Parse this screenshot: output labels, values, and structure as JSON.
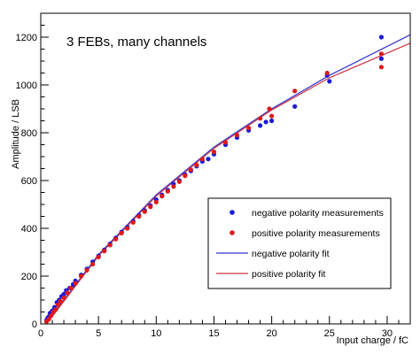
{
  "chart_data": {
    "type": "scatter",
    "annotation": "3 FEBs, many channels",
    "xlabel": "Input charge / fC",
    "ylabel": "Amplitude / LSB",
    "xlim": [
      0,
      32
    ],
    "ylim": [
      0,
      1300
    ],
    "xticks": [
      0,
      5,
      10,
      15,
      20,
      25,
      30
    ],
    "yticks": [
      0,
      200,
      400,
      600,
      800,
      1000,
      1200
    ],
    "grid": false,
    "legend_position": "bottom-right",
    "series": [
      {
        "name": "negative polarity measurements",
        "kind": "points",
        "color": "#1a1adb",
        "points": [
          [
            0.5,
            15
          ],
          [
            0.6,
            25
          ],
          [
            0.7,
            30
          ],
          [
            0.8,
            45
          ],
          [
            1.0,
            55
          ],
          [
            1.2,
            70
          ],
          [
            1.4,
            90
          ],
          [
            1.6,
            100
          ],
          [
            1.8,
            115
          ],
          [
            2.0,
            125
          ],
          [
            2.2,
            140
          ],
          [
            2.5,
            150
          ],
          [
            2.8,
            165
          ],
          [
            3.0,
            180
          ],
          [
            3.5,
            205
          ],
          [
            4.0,
            230
          ],
          [
            4.5,
            260
          ],
          [
            5.0,
            285
          ],
          [
            5.5,
            310
          ],
          [
            6.0,
            335
          ],
          [
            6.5,
            360
          ],
          [
            7.0,
            385
          ],
          [
            7.5,
            405
          ],
          [
            8.0,
            430
          ],
          [
            8.5,
            455
          ],
          [
            9.0,
            475
          ],
          [
            9.5,
            495
          ],
          [
            10.0,
            520
          ],
          [
            10.5,
            540
          ],
          [
            11.0,
            560
          ],
          [
            11.5,
            585
          ],
          [
            12.0,
            600
          ],
          [
            12.5,
            625
          ],
          [
            13.0,
            640
          ],
          [
            13.5,
            660
          ],
          [
            14.0,
            680
          ],
          [
            14.5,
            690
          ],
          [
            15.0,
            710
          ],
          [
            16.0,
            750
          ],
          [
            17.0,
            780
          ],
          [
            18.0,
            810
          ],
          [
            19.0,
            830
          ],
          [
            19.5,
            845
          ],
          [
            20.0,
            850
          ],
          [
            22.0,
            910
          ],
          [
            24.8,
            1040
          ],
          [
            25.0,
            1015
          ],
          [
            29.5,
            1200
          ],
          [
            29.5,
            1110
          ]
        ]
      },
      {
        "name": "positive polarity measurements",
        "kind": "points",
        "color": "#dd1a1a",
        "points": [
          [
            0.5,
            10
          ],
          [
            0.7,
            20
          ],
          [
            0.9,
            35
          ],
          [
            1.1,
            50
          ],
          [
            1.3,
            60
          ],
          [
            1.5,
            80
          ],
          [
            1.7,
            95
          ],
          [
            2.0,
            110
          ],
          [
            2.3,
            130
          ],
          [
            2.6,
            150
          ],
          [
            3.0,
            170
          ],
          [
            3.5,
            200
          ],
          [
            4.0,
            225
          ],
          [
            4.5,
            250
          ],
          [
            5.0,
            280
          ],
          [
            5.5,
            305
          ],
          [
            6.0,
            330
          ],
          [
            6.5,
            355
          ],
          [
            7.0,
            380
          ],
          [
            7.5,
            400
          ],
          [
            8.0,
            425
          ],
          [
            8.5,
            450
          ],
          [
            9.0,
            470
          ],
          [
            9.5,
            490
          ],
          [
            10.0,
            510
          ],
          [
            10.5,
            535
          ],
          [
            11.0,
            555
          ],
          [
            11.5,
            575
          ],
          [
            12.0,
            595
          ],
          [
            12.5,
            620
          ],
          [
            13.0,
            645
          ],
          [
            13.5,
            665
          ],
          [
            14.0,
            690
          ],
          [
            15.0,
            720
          ],
          [
            16.0,
            760
          ],
          [
            17.0,
            790
          ],
          [
            18.0,
            820
          ],
          [
            19.0,
            860
          ],
          [
            19.8,
            900
          ],
          [
            20.0,
            870
          ],
          [
            22.0,
            975
          ],
          [
            24.8,
            1050
          ],
          [
            29.5,
            1130
          ],
          [
            29.5,
            1075
          ]
        ]
      },
      {
        "name": "negative polarity fit",
        "kind": "line",
        "color": "#3333cc",
        "points": [
          [
            0.5,
            5
          ],
          [
            5,
            290
          ],
          [
            10,
            540
          ],
          [
            15,
            740
          ],
          [
            20,
            900
          ],
          [
            25,
            1040
          ],
          [
            32,
            1210
          ]
        ]
      },
      {
        "name": "positive polarity fit",
        "kind": "line",
        "color": "#cc3344",
        "points": [
          [
            0.5,
            0
          ],
          [
            5,
            285
          ],
          [
            10,
            535
          ],
          [
            15,
            735
          ],
          [
            20,
            895
          ],
          [
            25,
            1030
          ],
          [
            32,
            1175
          ]
        ]
      }
    ]
  }
}
